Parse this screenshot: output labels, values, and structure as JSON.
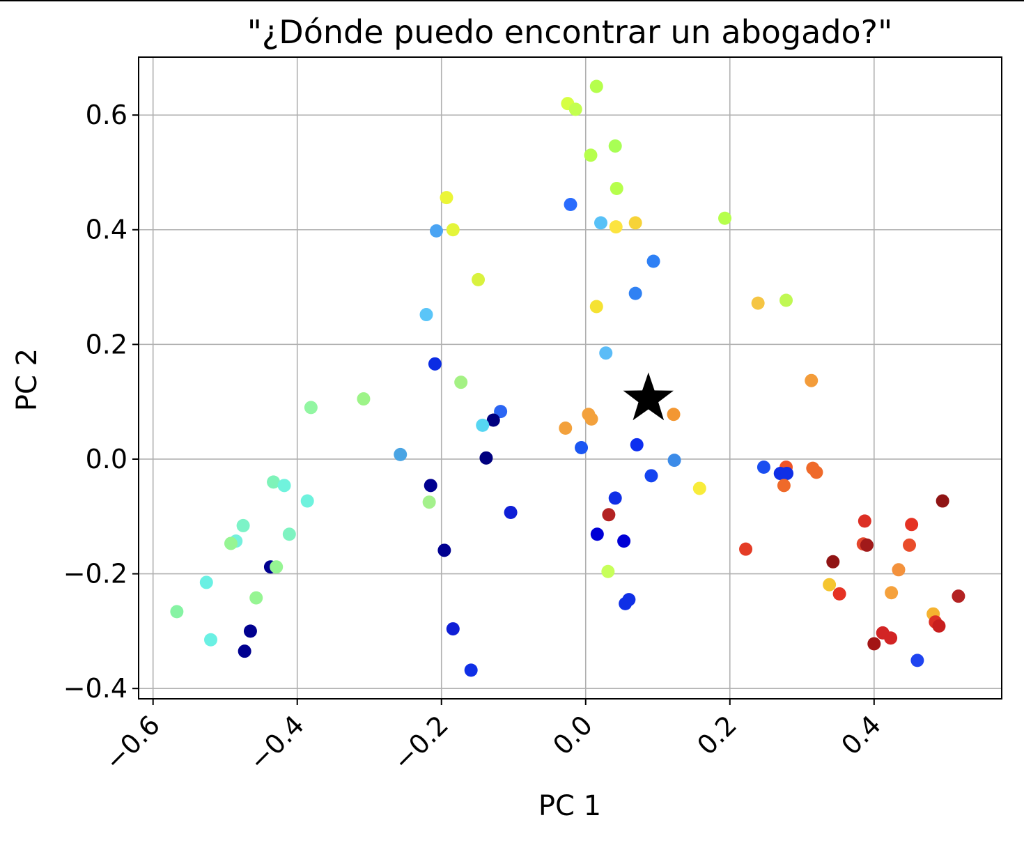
{
  "chart_data": {
    "type": "scatter",
    "title": "\"¿Dónde puedo encontrar un abogado?\"",
    "xlabel": "PC 1",
    "ylabel": "PC 2",
    "xlim": [
      -0.62,
      0.577
    ],
    "ylim": [
      -0.418,
      0.701
    ],
    "xticks": [
      -0.6,
      -0.4,
      -0.2,
      0.0,
      0.2,
      0.4
    ],
    "xtick_labels": [
      "−0.6",
      "−0.4",
      "−0.2",
      "0.0",
      "0.2",
      "0.4"
    ],
    "yticks": [
      -0.4,
      -0.2,
      0.0,
      0.2,
      0.4,
      0.6
    ],
    "ytick_labels": [
      "−0.4",
      "−0.2",
      "0.0",
      "0.2",
      "0.4",
      "0.6"
    ],
    "grid": true,
    "xtick_rotation": "45 degrees",
    "marker_star": {
      "x": 0.087,
      "y": 0.105,
      "color": "#000000"
    },
    "points": [
      {
        "x": 0.015,
        "y": 0.65,
        "c": "#b5ff4c"
      },
      {
        "x": -0.025,
        "y": 0.62,
        "c": "#d6ff43"
      },
      {
        "x": -0.014,
        "y": 0.61,
        "c": "#c3ff4f"
      },
      {
        "x": 0.041,
        "y": 0.546,
        "c": "#a8ff55"
      },
      {
        "x": 0.007,
        "y": 0.53,
        "c": "#b6ff4c"
      },
      {
        "x": 0.043,
        "y": 0.472,
        "c": "#b6ff4c"
      },
      {
        "x": -0.193,
        "y": 0.456,
        "c": "#ebf537"
      },
      {
        "x": -0.021,
        "y": 0.444,
        "c": "#2a6cfd"
      },
      {
        "x": 0.021,
        "y": 0.412,
        "c": "#58c1f7"
      },
      {
        "x": 0.069,
        "y": 0.412,
        "c": "#f7d338"
      },
      {
        "x": -0.207,
        "y": 0.398,
        "c": "#4aa4f3"
      },
      {
        "x": -0.184,
        "y": 0.4,
        "c": "#e4f53a"
      },
      {
        "x": 0.042,
        "y": 0.405,
        "c": "#fce43f"
      },
      {
        "x": 0.193,
        "y": 0.42,
        "c": "#b6ff4c"
      },
      {
        "x": 0.094,
        "y": 0.345,
        "c": "#2e80f5"
      },
      {
        "x": -0.149,
        "y": 0.313,
        "c": "#d9f23e"
      },
      {
        "x": 0.069,
        "y": 0.289,
        "c": "#3081f3"
      },
      {
        "x": 0.239,
        "y": 0.272,
        "c": "#f5c543"
      },
      {
        "x": 0.278,
        "y": 0.277,
        "c": "#c0f853"
      },
      {
        "x": 0.015,
        "y": 0.266,
        "c": "#f5e232"
      },
      {
        "x": -0.221,
        "y": 0.252,
        "c": "#5ac5f8"
      },
      {
        "x": 0.028,
        "y": 0.185,
        "c": "#5bbcf7"
      },
      {
        "x": -0.209,
        "y": 0.166,
        "c": "#0b2ce3"
      },
      {
        "x": -0.173,
        "y": 0.134,
        "c": "#a4f184"
      },
      {
        "x": 0.313,
        "y": 0.137,
        "c": "#f39c3a"
      },
      {
        "x": -0.308,
        "y": 0.105,
        "c": "#9df488"
      },
      {
        "x": -0.381,
        "y": 0.09,
        "c": "#92f6a2"
      },
      {
        "x": 0.004,
        "y": 0.078,
        "c": "#f3a13c"
      },
      {
        "x": 0.008,
        "y": 0.07,
        "c": "#f3a13c"
      },
      {
        "x": 0.122,
        "y": 0.078,
        "c": "#f39732"
      },
      {
        "x": -0.118,
        "y": 0.083,
        "c": "#2b65f3"
      },
      {
        "x": -0.128,
        "y": 0.068,
        "c": "#00007f"
      },
      {
        "x": -0.143,
        "y": 0.059,
        "c": "#57d6f2"
      },
      {
        "x": -0.028,
        "y": 0.054,
        "c": "#f3a13c"
      },
      {
        "x": 0.071,
        "y": 0.025,
        "c": "#0d2ef0"
      },
      {
        "x": -0.006,
        "y": 0.02,
        "c": "#1b56f2"
      },
      {
        "x": -0.257,
        "y": 0.008,
        "c": "#4aa4e3"
      },
      {
        "x": -0.138,
        "y": 0.002,
        "c": "#00007f"
      },
      {
        "x": 0.123,
        "y": -0.002,
        "c": "#3c8be8"
      },
      {
        "x": 0.247,
        "y": -0.014,
        "c": "#1a4ef0"
      },
      {
        "x": 0.278,
        "y": -0.014,
        "c": "#ef5426"
      },
      {
        "x": 0.315,
        "y": -0.016,
        "c": "#ef6a2a"
      },
      {
        "x": 0.32,
        "y": -0.023,
        "c": "#ef6a2a"
      },
      {
        "x": 0.27,
        "y": -0.025,
        "c": "#0f2fe6"
      },
      {
        "x": 0.279,
        "y": -0.025,
        "c": "#0f2fe6"
      },
      {
        "x": 0.091,
        "y": -0.029,
        "c": "#1444f0"
      },
      {
        "x": -0.433,
        "y": -0.04,
        "c": "#7ef3b9"
      },
      {
        "x": -0.418,
        "y": -0.046,
        "c": "#70f3dd"
      },
      {
        "x": -0.215,
        "y": -0.046,
        "c": "#00008f"
      },
      {
        "x": 0.275,
        "y": -0.046,
        "c": "#ef6a2a"
      },
      {
        "x": 0.158,
        "y": -0.051,
        "c": "#f8ec3a"
      },
      {
        "x": 0.041,
        "y": -0.068,
        "c": "#0f2fe6"
      },
      {
        "x": -0.386,
        "y": -0.073,
        "c": "#6ef2dd"
      },
      {
        "x": -0.217,
        "y": -0.075,
        "c": "#a4f18c"
      },
      {
        "x": -0.104,
        "y": -0.093,
        "c": "#0f1fd6"
      },
      {
        "x": 0.032,
        "y": -0.097,
        "c": "#b32222"
      },
      {
        "x": 0.495,
        "y": -0.073,
        "c": "#8f1414"
      },
      {
        "x": 0.387,
        "y": -0.108,
        "c": "#dc2f24"
      },
      {
        "x": 0.452,
        "y": -0.114,
        "c": "#e53223"
      },
      {
        "x": -0.475,
        "y": -0.116,
        "c": "#7cf3c7"
      },
      {
        "x": -0.411,
        "y": -0.131,
        "c": "#7ef3c1"
      },
      {
        "x": 0.016,
        "y": -0.131,
        "c": "#0000d6"
      },
      {
        "x": 0.053,
        "y": -0.143,
        "c": "#0000d6"
      },
      {
        "x": -0.485,
        "y": -0.143,
        "c": "#75f0dd"
      },
      {
        "x": -0.492,
        "y": -0.147,
        "c": "#96f593"
      },
      {
        "x": 0.385,
        "y": -0.148,
        "c": "#e4462c"
      },
      {
        "x": 0.39,
        "y": -0.15,
        "c": "#a11a1a"
      },
      {
        "x": 0.449,
        "y": -0.15,
        "c": "#e94c2a"
      },
      {
        "x": 0.222,
        "y": -0.157,
        "c": "#e43c26"
      },
      {
        "x": -0.196,
        "y": -0.159,
        "c": "#000090"
      },
      {
        "x": 0.343,
        "y": -0.179,
        "c": "#901414"
      },
      {
        "x": -0.437,
        "y": -0.188,
        "c": "#000090"
      },
      {
        "x": -0.429,
        "y": -0.188,
        "c": "#96f593"
      },
      {
        "x": 0.031,
        "y": -0.196,
        "c": "#c7ff5a"
      },
      {
        "x": 0.434,
        "y": -0.193,
        "c": "#f3913c"
      },
      {
        "x": -0.526,
        "y": -0.215,
        "c": "#6af0e3"
      },
      {
        "x": 0.338,
        "y": -0.219,
        "c": "#f5c530"
      },
      {
        "x": 0.352,
        "y": -0.235,
        "c": "#e53223"
      },
      {
        "x": 0.424,
        "y": -0.233,
        "c": "#f5a13c"
      },
      {
        "x": 0.517,
        "y": -0.239,
        "c": "#b32222"
      },
      {
        "x": -0.457,
        "y": -0.242,
        "c": "#96f593"
      },
      {
        "x": 0.06,
        "y": -0.245,
        "c": "#0f2fe6"
      },
      {
        "x": 0.055,
        "y": -0.252,
        "c": "#0f2fe6"
      },
      {
        "x": -0.567,
        "y": -0.266,
        "c": "#86f3a3"
      },
      {
        "x": 0.482,
        "y": -0.27,
        "c": "#f5b230"
      },
      {
        "x": 0.485,
        "y": -0.284,
        "c": "#dc2f24"
      },
      {
        "x": 0.49,
        "y": -0.291,
        "c": "#c81e1e"
      },
      {
        "x": -0.184,
        "y": -0.296,
        "c": "#0f1fd6"
      },
      {
        "x": -0.465,
        "y": -0.3,
        "c": "#00008f"
      },
      {
        "x": 0.412,
        "y": -0.303,
        "c": "#d22424"
      },
      {
        "x": 0.423,
        "y": -0.312,
        "c": "#d22424"
      },
      {
        "x": -0.52,
        "y": -0.315,
        "c": "#6af0e3"
      },
      {
        "x": 0.4,
        "y": -0.322,
        "c": "#a31515"
      },
      {
        "x": -0.473,
        "y": -0.335,
        "c": "#00008f"
      },
      {
        "x": 0.46,
        "y": -0.351,
        "c": "#1f44f0"
      },
      {
        "x": -0.159,
        "y": -0.368,
        "c": "#0f2fe6"
      }
    ]
  }
}
